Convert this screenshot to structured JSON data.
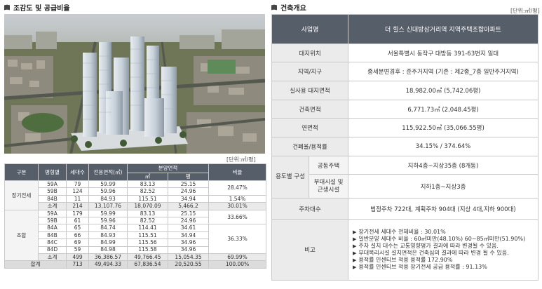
{
  "left": {
    "title": "조감도 및 공급비율",
    "unit": "[단위:㎡/평]",
    "headers": {
      "type": "구분",
      "pyeong": "평형별",
      "households": "세대수",
      "exclusive_area": "전용면적(㎡)",
      "sale_area": "분양면적",
      "sale_m2": "㎡",
      "sale_py": "평",
      "ratio": "비율"
    },
    "groups": {
      "general": "장기전세",
      "union": "조합",
      "subtotal": "소계",
      "total": "합계"
    },
    "rows": [
      {
        "p": "59A",
        "h": "79",
        "e": "59.99",
        "m": "83.13",
        "py": "25.15"
      },
      {
        "p": "59B",
        "h": "124",
        "e": "59.96",
        "m": "82.52",
        "py": "24.96"
      },
      {
        "p": "84B",
        "h": "11",
        "e": "84.93",
        "m": "115.51",
        "py": "34.94"
      },
      {
        "p": "59A",
        "h": "179",
        "e": "59.99",
        "m": "83.13",
        "py": "25.15"
      },
      {
        "p": "59B",
        "h": "61",
        "e": "59.96",
        "m": "82.52",
        "py": "24.96"
      },
      {
        "p": "84A",
        "h": "65",
        "e": "84.74",
        "m": "114.41",
        "py": "34.61"
      },
      {
        "p": "84B",
        "h": "66",
        "e": "84.93",
        "m": "115.51",
        "py": "34.94"
      },
      {
        "p": "84C",
        "h": "69",
        "e": "84.99",
        "m": "115.56",
        "py": "34.96"
      },
      {
        "p": "84D",
        "h": "59",
        "e": "84.98",
        "m": "115.58",
        "py": "34.96"
      }
    ],
    "ratios": {
      "general_59": "28.47%",
      "general_84": "1.54%",
      "union_59": "33.66%",
      "union_84": "36.33%"
    },
    "subtotal_general": {
      "h": "214",
      "e": "13,107.76",
      "m": "18,070.09",
      "py": "5,466.2",
      "r": "30.01%"
    },
    "subtotal_union": {
      "h": "499",
      "e": "36,386.57",
      "m": "49,766.45",
      "py": "15,054.35",
      "r": "69.99%"
    },
    "total": {
      "h": "713",
      "e": "49,494.33",
      "m": "67,836.54",
      "py": "20,520.55",
      "r": "100.00%"
    }
  },
  "right": {
    "title": "건축개요",
    "unit": "[단위:㎡/평]",
    "project_label": "사업명",
    "project_value": "더 힐스 신대방삼거리역 지역주택조합아파트",
    "rows": [
      {
        "label": "대지위치",
        "value": "서울특별시 동작구 대방동 391-63번지 일대"
      },
      {
        "label": "지역/지구",
        "value": "종세분변경후 : 준주거지역 (기존 : 제2종_7층 일반주거지역)"
      },
      {
        "label": "실사용 대지면적",
        "value": "18,982.00㎡ (5,742.06평)"
      },
      {
        "label": "건축면적",
        "value": "6,771.73㎡ (2,048.45평)"
      },
      {
        "label": "연면적",
        "value": "115,922.50㎡ (35,066.55평)"
      },
      {
        "label": "건폐율/용적률",
        "value": "34.15% / 374.64%"
      }
    ],
    "use_label": "용도별 구성",
    "use_rows": [
      {
        "label": "공동주택",
        "value": "지하4층~지상35층 (8개동)"
      },
      {
        "label": "부대시설 및 근생시설",
        "value": "지하1층~지상3층"
      }
    ],
    "parking_label": "주차대수",
    "parking_value": "법정주차 722대, 계획주차 904대 (지상 4대,지하 900대)",
    "note_label": "비고",
    "notes": [
      "장기전세 세대수 전체비율 : 30.01%",
      "일반분양 세대수 비율 : 60㎡미만(48.10%) 60~85㎡미만(51.90%)",
      "주차 설치 대수는 교통영향평가 결과에 따라 변경될 수 있음.",
      "부대복리시설 설치면적은 건축심의 결과에 따라 변경 될 수 있음.",
      "용적률 인센티브 적용 용적률 172.90%",
      "용적률 인센티브 적용 장기전세 공급 용적률 : 91.13%"
    ]
  }
}
